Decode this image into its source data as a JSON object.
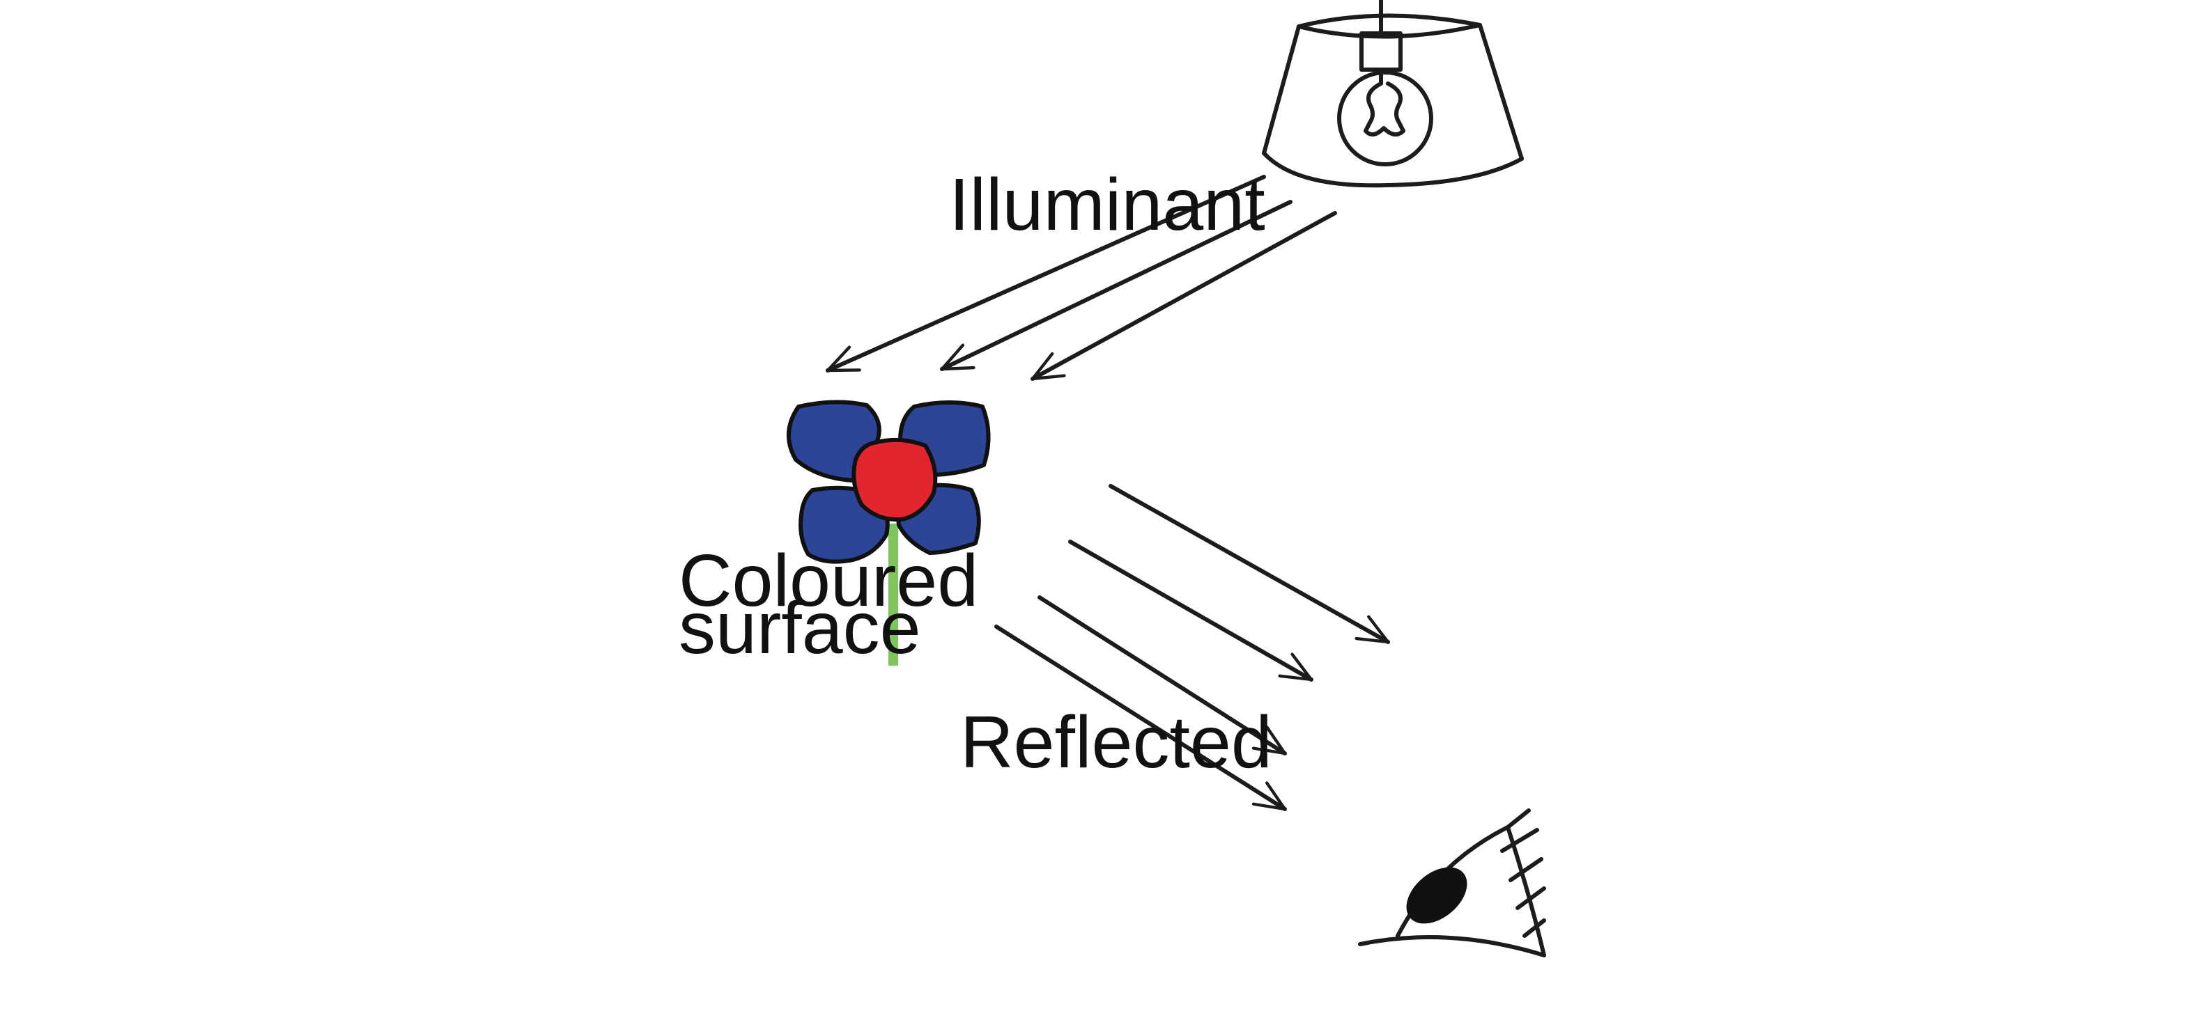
{
  "labels": {
    "illuminant": "Illuminant",
    "surface_line1": "Coloured",
    "surface_line2": "surface",
    "reflected": "Reflected"
  },
  "colors": {
    "petals": "#2c4596",
    "flower_center": "#e3262e",
    "stem": "#7dc55c",
    "ink": "#1c1c1c"
  },
  "icons": {
    "light_source": "lamp-with-bulb-icon",
    "surface": "flower-icon",
    "observer": "eye-icon"
  }
}
